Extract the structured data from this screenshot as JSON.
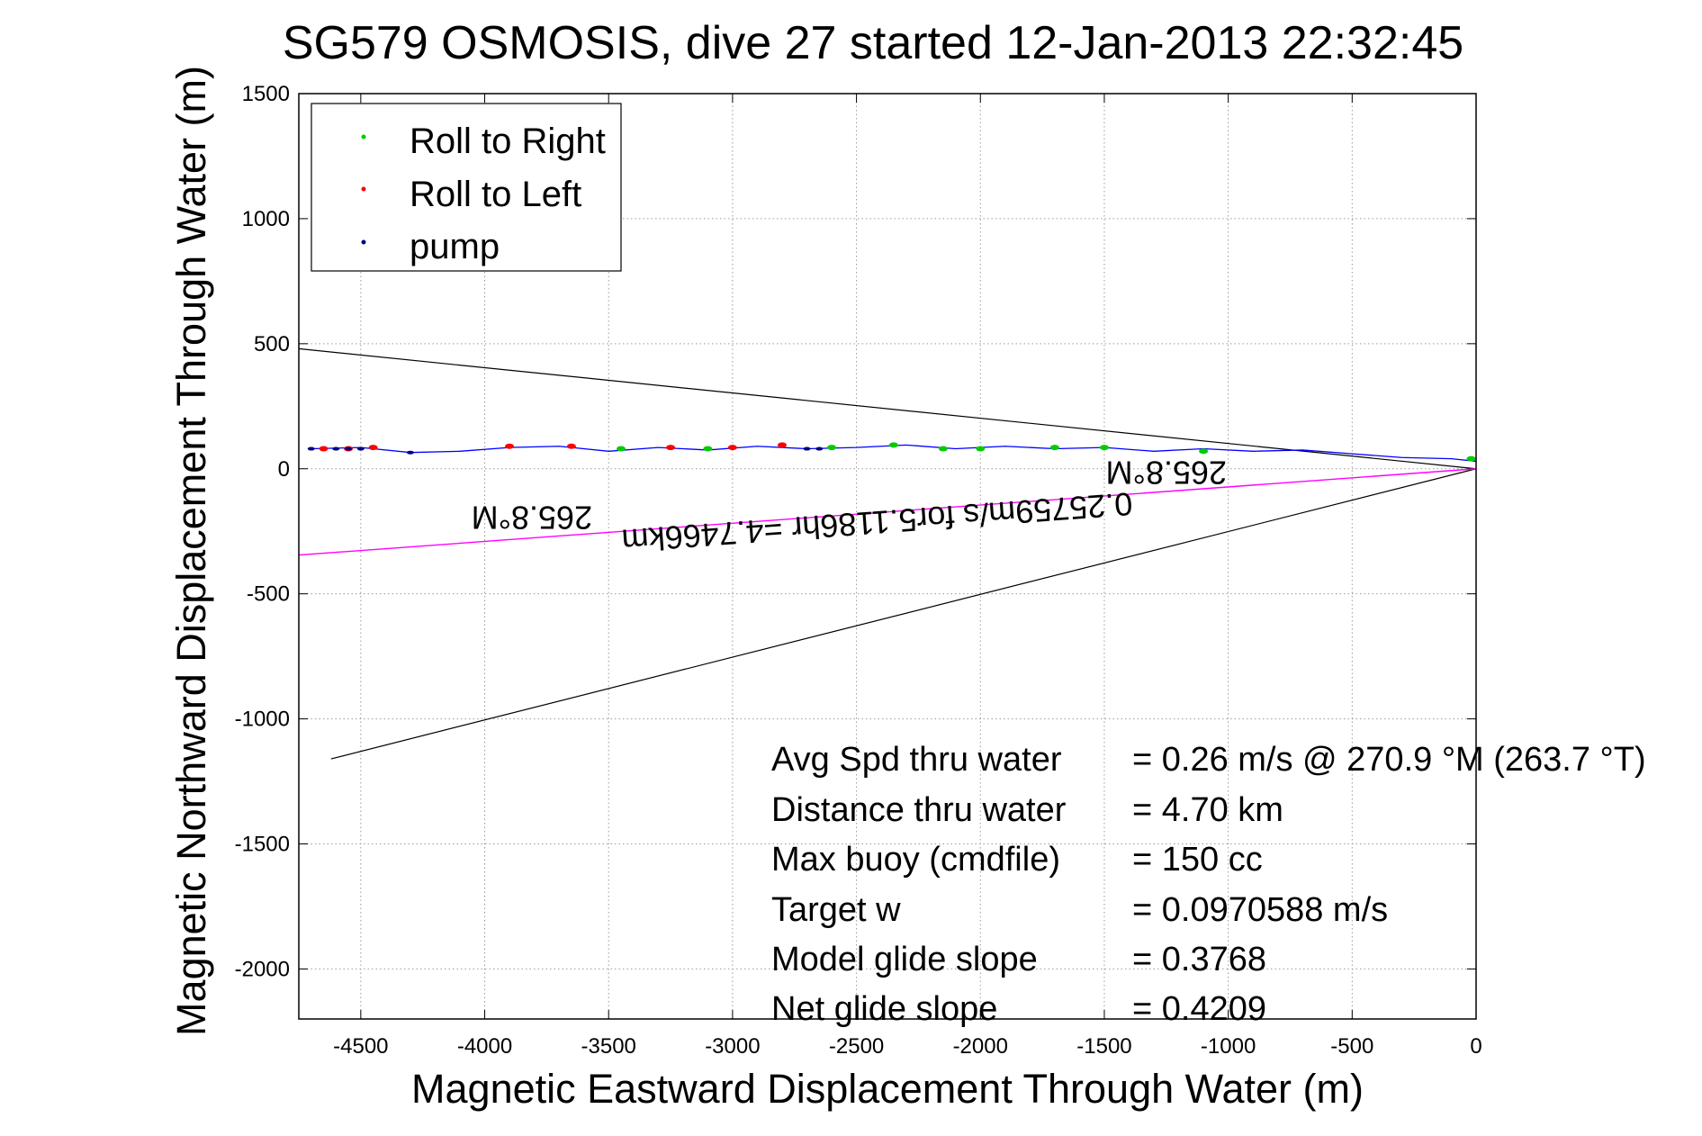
{
  "chart_data": {
    "type": "scatter",
    "title": "SG579 OSMOSIS, dive 27 started 12-Jan-2013 22:32:45",
    "xlabel": "Magnetic Eastward Displacement Through Water (m)",
    "ylabel": "Magnetic Northward Displacement Through Water (m)",
    "xlim": [
      -4750,
      0
    ],
    "ylim": [
      -2200,
      1500
    ],
    "grid": true,
    "legend_position": "top-left",
    "x_ticks": [
      -4500,
      -4000,
      -3500,
      -3000,
      -2500,
      -2000,
      -1500,
      -1000,
      -500,
      0
    ],
    "y_ticks": [
      1500,
      1000,
      500,
      0,
      -500,
      -1000,
      -1500,
      -2000
    ],
    "colors": {
      "track": "#0000ff",
      "roll_right": "#00cc00",
      "roll_left": "#ff0000",
      "pump": "#000080",
      "bound_lines": "#000000",
      "heading_line": "#ff00ff"
    },
    "legend": [
      {
        "label": "Roll to Right",
        "color": "#00cc00"
      },
      {
        "label": "Roll to Left",
        "color": "#ff0000"
      },
      {
        "label": "pump",
        "color": "#000080"
      }
    ],
    "track": {
      "x": [
        0,
        -100,
        -300,
        -500,
        -700,
        -900,
        -1100,
        -1300,
        -1500,
        -1700,
        -1900,
        -2100,
        -2300,
        -2500,
        -2700,
        -2900,
        -3100,
        -3300,
        -3500,
        -3700,
        -3900,
        -4100,
        -4300,
        -4500,
        -4700
      ],
      "y": [
        30,
        40,
        45,
        60,
        75,
        70,
        80,
        70,
        85,
        80,
        90,
        80,
        95,
        85,
        80,
        90,
        75,
        85,
        70,
        90,
        85,
        70,
        65,
        85,
        80
      ]
    },
    "roll_right_points": {
      "x": [
        -20,
        -1100,
        -1500,
        -1700,
        -2000,
        -2150,
        -2350,
        -2600,
        -3100,
        -3450
      ],
      "y": [
        40,
        70,
        85,
        85,
        80,
        80,
        95,
        85,
        80,
        80
      ]
    },
    "roll_left_points": {
      "x": [
        -2800,
        -3000,
        -3250,
        -3650,
        -3900,
        -4450,
        -4550,
        -4650
      ],
      "y": [
        95,
        85,
        85,
        90,
        90,
        85,
        80,
        80
      ]
    },
    "pump_points": {
      "x": [
        -2650,
        -2700,
        -4300,
        -4500,
        -4550,
        -4600,
        -4700
      ],
      "y": [
        80,
        80,
        65,
        80,
        80,
        80,
        80
      ]
    },
    "bound_lines": [
      {
        "x": [
          0,
          -4750
        ],
        "y": [
          0,
          480
        ]
      },
      {
        "x": [
          0,
          -4620
        ],
        "y": [
          0,
          -1160
        ]
      }
    ],
    "heading_line": {
      "x": [
        0,
        -4750
      ],
      "y": [
        0,
        -345
      ]
    },
    "annotations": [
      {
        "text": "265.8°M",
        "x": -1250,
        "y": 30,
        "rotation": 180
      },
      {
        "text": "265.8°M",
        "x": -3810,
        "y": -150,
        "rotation": 180
      },
      {
        "text": "0.25759m/s for5.1186hr =4.7466km",
        "x": -2420,
        "y": -170,
        "rotation": 175.8
      }
    ],
    "stats": [
      {
        "label": "Avg Spd thru water",
        "value": "=  0.26 m/s @ 270.9 °M (263.7 °T)"
      },
      {
        "label": "Distance thru water",
        "value": "=  4.70 km"
      },
      {
        "label": "Max buoy (cmdfile)",
        "value": "= 150 cc"
      },
      {
        "label": "Target w",
        "value": "= 0.0970588 m/s"
      },
      {
        "label": "Model glide slope",
        "value": "= 0.3768"
      },
      {
        "label": "Net glide slope",
        "value": "= 0.4209"
      }
    ]
  }
}
